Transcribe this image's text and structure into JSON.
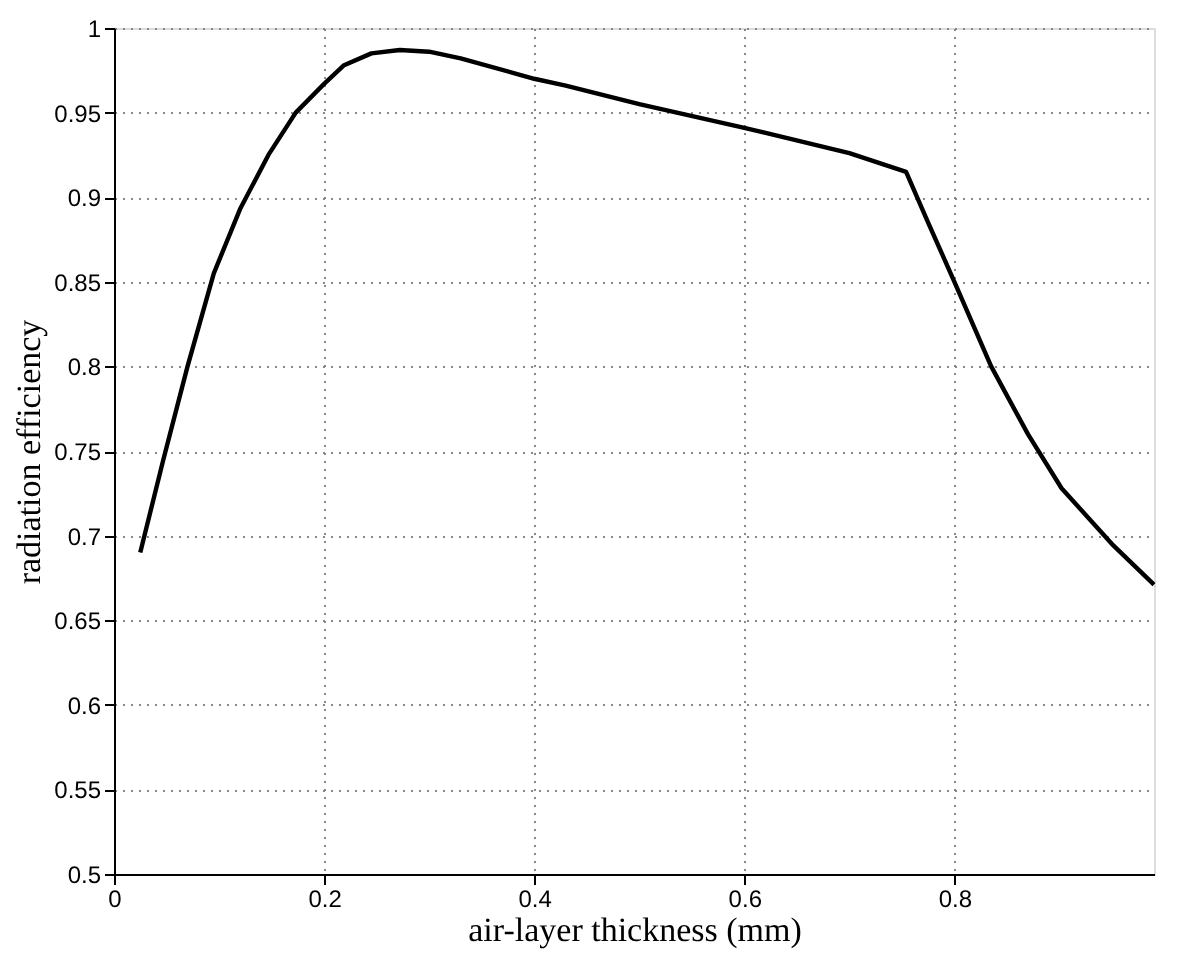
{
  "chart_data": {
    "type": "line",
    "xlabel": "air-layer thickness (mm)",
    "ylabel": "radiation efficiency",
    "x": [
      0.025,
      0.047,
      0.07,
      0.095,
      0.12,
      0.147,
      0.173,
      0.2,
      0.219,
      0.245,
      0.272,
      0.3,
      0.33,
      0.4,
      0.43,
      0.5,
      0.6,
      0.7,
      0.754,
      0.775,
      0.8,
      0.835,
      0.87,
      0.902,
      0.95,
      0.99
    ],
    "series": [
      {
        "color": "#000000",
        "values": [
          0.69,
          0.745,
          0.8,
          0.855,
          0.893,
          0.925,
          0.95,
          0.967,
          0.978,
          0.985,
          0.987,
          0.986,
          0.982,
          0.97,
          0.966,
          0.955,
          0.941,
          0.926,
          0.915,
          0.885,
          0.85,
          0.8,
          0.76,
          0.728,
          0.695,
          0.671
        ]
      }
    ],
    "xlim": [
      0,
      0.99
    ],
    "xticks": [
      0,
      0.2,
      0.4,
      0.6,
      0.8
    ],
    "ylim": [
      0.5,
      1
    ],
    "yticks": [
      0.5,
      0.55,
      0.6,
      0.65,
      0.7,
      0.75,
      0.8,
      0.85,
      0.9,
      0.95,
      1
    ],
    "grid": true,
    "marker": "none",
    "line_style": "solid"
  }
}
